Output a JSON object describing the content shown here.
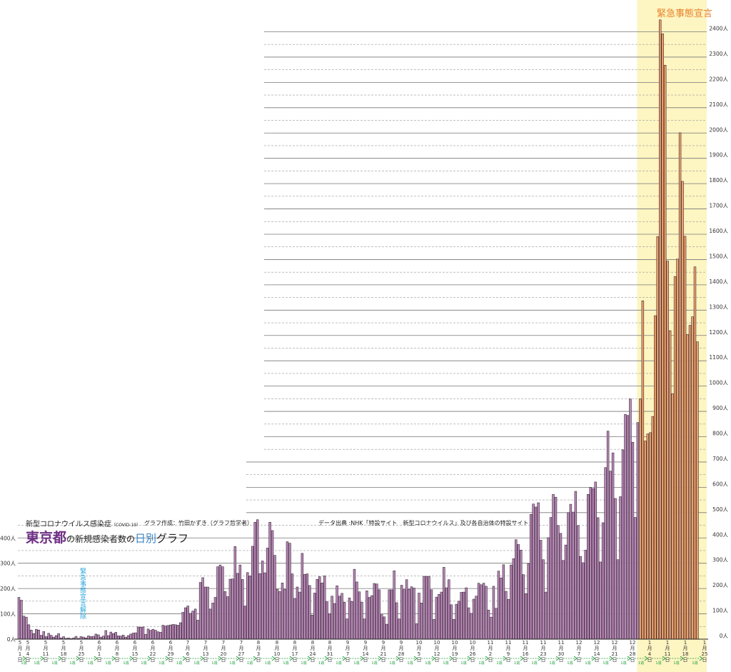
{
  "chart_data": {
    "type": "bar",
    "title_region": "東京都",
    "title_mid": "の新規感染者数の",
    "title_daily": "日別",
    "title_end": "グラフ",
    "disease": "新型コロナウイルス感染症",
    "disease_tag": "（COVID-19）",
    "author": "グラフ作成：竹田かずき（グラフ哲学者）",
    "source": "データ出典 :NHK「特設サイト　新型コロナウイルス」及び各自治体の特設サイト",
    "emergency_label": "緊急事態宣言",
    "lift_label": "緊急事態宣言解除",
    "unit": "人",
    "ylim": [
      0,
      2450
    ],
    "y_ticks": [
      0,
      50,
      100,
      150,
      200,
      250,
      300,
      350,
      400,
      450,
      500,
      550,
      600,
      650,
      700,
      750,
      800,
      850,
      900,
      950,
      1000,
      1050,
      1100,
      1150,
      1200,
      1250,
      1300,
      1350,
      1400,
      1450,
      1500,
      1550,
      1600,
      1650,
      1700,
      1750,
      1800,
      1850,
      1900,
      1950,
      2000,
      2050,
      2100,
      2150,
      2200,
      2250,
      2300,
      2350,
      2400
    ],
    "y_tick_labels_left": [
      "0人",
      "100人",
      "200人",
      "300人",
      "400人"
    ],
    "y_tick_labels_right": [
      "0人",
      "100人",
      "200人",
      "300人",
      "400人",
      "500人",
      "600人",
      "700人",
      "800人",
      "900人",
      "1000人",
      "1100人",
      "1200人",
      "1300人",
      "1400人",
      "1500人",
      "1600人",
      "1700人",
      "1800人",
      "1900人",
      "2000人",
      "2100人",
      "2200人",
      "2300人",
      "2400人"
    ],
    "x_labels": [
      {
        "m": "5",
        "d": "1"
      },
      {
        "m": "5",
        "d": "4"
      },
      {
        "m": "5",
        "d": "11"
      },
      {
        "m": "5",
        "d": "18"
      },
      {
        "m": "5",
        "d": "25"
      },
      {
        "m": "6",
        "d": "1"
      },
      {
        "m": "6",
        "d": "8"
      },
      {
        "m": "6",
        "d": "15"
      },
      {
        "m": "6",
        "d": "22"
      },
      {
        "m": "6",
        "d": "29"
      },
      {
        "m": "7",
        "d": "6"
      },
      {
        "m": "7",
        "d": "13"
      },
      {
        "m": "7",
        "d": "20"
      },
      {
        "m": "7",
        "d": "27"
      },
      {
        "m": "8",
        "d": "3"
      },
      {
        "m": "8",
        "d": "10"
      },
      {
        "m": "8",
        "d": "17"
      },
      {
        "m": "8",
        "d": "24"
      },
      {
        "m": "8",
        "d": "31"
      },
      {
        "m": "9",
        "d": "7"
      },
      {
        "m": "9",
        "d": "14"
      },
      {
        "m": "9",
        "d": "21"
      },
      {
        "m": "9",
        "d": "28"
      },
      {
        "m": "10",
        "d": "5"
      },
      {
        "m": "10",
        "d": "12"
      },
      {
        "m": "10",
        "d": "19"
      },
      {
        "m": "10",
        "d": "26"
      },
      {
        "m": "11",
        "d": "2"
      },
      {
        "m": "11",
        "d": "9"
      },
      {
        "m": "11",
        "d": "16"
      },
      {
        "m": "11",
        "d": "23"
      },
      {
        "m": "11",
        "d": "30"
      },
      {
        "m": "12",
        "d": "7"
      },
      {
        "m": "12",
        "d": "14"
      },
      {
        "m": "12",
        "d": "21"
      },
      {
        "m": "12",
        "d": "28"
      },
      {
        "m": "1",
        "d": "4"
      },
      {
        "m": "1",
        "d": "11"
      },
      {
        "m": "1",
        "d": "18"
      },
      {
        "m": "1",
        "d": "25"
      }
    ],
    "week_label": "1週",
    "colors": {
      "normal": "#b988b7",
      "emergency": "#eea266",
      "band": "#fdf5c2",
      "arrow": "#1f9e3a",
      "bar_edge": "#3a2a3a"
    },
    "values": [
      165,
      154,
      91,
      87,
      57,
      36,
      22,
      39,
      36,
      15,
      30,
      10,
      23,
      15,
      8,
      14,
      22,
      5,
      10,
      3,
      5,
      2,
      5,
      11,
      3,
      10,
      8,
      5,
      13,
      10,
      11,
      20,
      17,
      8,
      12,
      34,
      14,
      28,
      22,
      27,
      13,
      12,
      16,
      8,
      14,
      20,
      24,
      25,
      48,
      47,
      48,
      19,
      40,
      35,
      39,
      35,
      29,
      27,
      55,
      52,
      54,
      56,
      58,
      57,
      55,
      65,
      106,
      124,
      131,
      102,
      111,
      119,
      75,
      224,
      243,
      206,
      206,
      119,
      143,
      165,
      286,
      293,
      286,
      188,
      168,
      237,
      238,
      366,
      260,
      293,
      236,
      131,
      263,
      250,
      367,
      462,
      472,
      259,
      309,
      262,
      360,
      462,
      429,
      331,
      197,
      188,
      222,
      197,
      385,
      379,
      258,
      161,
      206,
      186,
      339,
      256,
      258,
      212,
      95,
      182,
      236,
      247,
      222,
      250,
      148,
      100,
      170,
      141,
      211,
      170,
      181,
      146,
      80,
      163,
      149,
      276,
      226,
      187,
      146,
      80,
      191,
      165,
      172,
      220,
      218,
      195,
      97,
      88,
      59,
      195,
      195,
      270,
      144,
      80,
      213,
      196,
      235,
      197,
      207,
      202,
      61,
      182,
      143,
      248,
      248,
      248,
      195,
      78,
      166,
      177,
      186,
      284,
      203,
      235,
      136,
      78,
      138,
      150,
      185,
      186,
      203,
      124,
      102,
      158,
      170,
      221,
      215,
      221,
      209,
      115,
      87,
      209,
      122,
      269,
      242,
      294,
      189,
      157,
      293,
      318,
      393,
      374,
      352,
      255,
      180,
      298,
      493,
      534,
      522,
      539,
      391,
      314,
      186,
      401,
      481,
      572,
      561,
      449,
      418,
      311,
      372,
      500,
      533,
      502,
      584,
      449,
      327,
      302,
      352,
      572,
      600,
      595,
      621,
      480,
      305,
      460,
      678,
      822,
      664,
      736,
      556,
      314,
      563,
      748,
      888,
      884,
      949,
      778,
      481,
      856,
      949,
      1337,
      783,
      811,
      816,
      880,
      1278,
      1591,
      2447,
      2392,
      2268,
      1494,
      1219,
      970,
      1433,
      1502,
      2001,
      1809,
      1592,
      1204,
      1240,
      1274,
      1471,
      1175
    ],
    "emergency_start_index": 250
  }
}
